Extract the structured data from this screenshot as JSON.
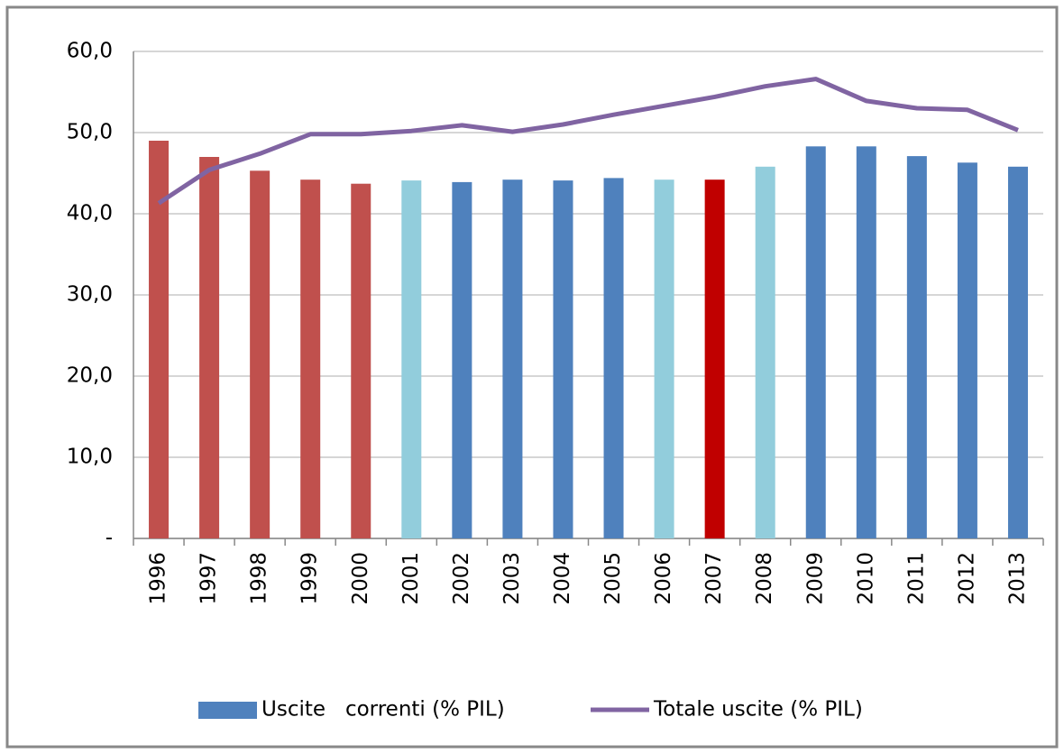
{
  "chart_data": {
    "type": "bar-line",
    "categories": [
      "1996",
      "1997",
      "1998",
      "1999",
      "2000",
      "2001",
      "2002",
      "2003",
      "2004",
      "2005",
      "2006",
      "2007",
      "2008",
      "2009",
      "2010",
      "2011",
      "2012",
      "2013"
    ],
    "series": [
      {
        "name": "Uscite   correnti (% PIL)",
        "type": "bar",
        "color": "#4f81bd",
        "colors": [
          "#c0504d",
          "#c0504d",
          "#c0504d",
          "#c0504d",
          "#c0504d",
          "#92cddc",
          "#4f81bd",
          "#4f81bd",
          "#4f81bd",
          "#4f81bd",
          "#92cddc",
          "#c00000",
          "#92cddc",
          "#4f81bd",
          "#4f81bd",
          "#4f81bd",
          "#4f81bd",
          "#4f81bd"
        ],
        "values": [
          49.0,
          47.0,
          45.3,
          44.2,
          43.7,
          44.1,
          43.9,
          44.2,
          44.1,
          44.4,
          44.2,
          44.2,
          45.8,
          48.3,
          48.3,
          47.1,
          46.3,
          45.8
        ]
      },
      {
        "name": "Totale uscite (% PIL)",
        "type": "line",
        "color": "#8064a2",
        "values": [
          41.3,
          45.4,
          47.4,
          49.8,
          49.8,
          50.2,
          50.9,
          50.1,
          51.0,
          52.2,
          53.3,
          54.4,
          55.7,
          56.6,
          53.9,
          53.0,
          52.8,
          50.3
        ]
      }
    ],
    "ylim": [
      0,
      60
    ],
    "yticks": [
      {
        "value": 0,
        "label": "-"
      },
      {
        "value": 10,
        "label": "10,0"
      },
      {
        "value": 20,
        "label": "20,0"
      },
      {
        "value": 30,
        "label": "30,0"
      },
      {
        "value": 40,
        "label": "40,0"
      },
      {
        "value": 50,
        "label": "50,0"
      },
      {
        "value": 60,
        "label": "60,0"
      }
    ],
    "grid": true,
    "legend": "bottom"
  }
}
